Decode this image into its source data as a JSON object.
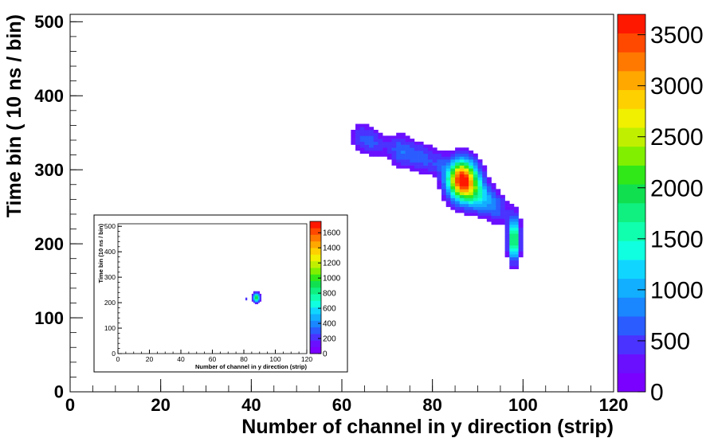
{
  "chart_data": [
    {
      "type": "heatmap",
      "panel": "main",
      "xlabel": "Number of channel in y direction (strip)",
      "ylabel": "Time bin ( 10 ns / bin)",
      "xlim": [
        0,
        120
      ],
      "ylim": [
        0,
        510
      ],
      "x_ticks": [
        "0",
        "20",
        "40",
        "60",
        "80",
        "100",
        "120"
      ],
      "y_ticks": [
        "0",
        "100",
        "200",
        "300",
        "400",
        "500"
      ],
      "z_ticks": [
        "0",
        "500",
        "1000",
        "1500",
        "2000",
        "2500",
        "3000",
        "3500"
      ],
      "zlim": [
        0,
        3700
      ],
      "grid": false,
      "colorbar": "right",
      "blobs": [
        {
          "x": 64,
          "y": 342,
          "sx": 1.8,
          "sy": 14,
          "z": 500
        },
        {
          "x": 67,
          "y": 333,
          "sx": 1.8,
          "sy": 12,
          "z": 450
        },
        {
          "x": 72,
          "y": 326,
          "sx": 1.8,
          "sy": 15,
          "z": 550
        },
        {
          "x": 75,
          "y": 318,
          "sx": 2.0,
          "sy": 13,
          "z": 500
        },
        {
          "x": 78,
          "y": 312,
          "sx": 1.6,
          "sy": 14,
          "z": 450
        },
        {
          "x": 81,
          "y": 306,
          "sx": 1.4,
          "sy": 12,
          "z": 400
        },
        {
          "x": 86,
          "y": 285,
          "sx": 2.2,
          "sy": 18,
          "z": 3700
        },
        {
          "x": 88.5,
          "y": 268,
          "sx": 2.0,
          "sy": 16,
          "z": 900
        },
        {
          "x": 91,
          "y": 258,
          "sx": 1.8,
          "sy": 14,
          "z": 700
        },
        {
          "x": 94,
          "y": 245,
          "sx": 1.6,
          "sy": 14,
          "z": 600
        },
        {
          "x": 97.5,
          "y": 205,
          "sx": 0.9,
          "sy": 20,
          "z": 2100
        }
      ]
    },
    {
      "type": "heatmap",
      "panel": "inset",
      "xlabel": "Number of channel in y direction (strip)",
      "ylabel": "Time bin (10 ns / bin)",
      "xlim": [
        0,
        120
      ],
      "ylim": [
        0,
        510
      ],
      "x_ticks": [
        "0",
        "20",
        "40",
        "60",
        "80",
        "100",
        "120"
      ],
      "y_ticks": [
        "0",
        "100",
        "200",
        "300",
        "400",
        "500"
      ],
      "z_ticks": [
        "0",
        "200",
        "400",
        "600",
        "800",
        "1000",
        "1200",
        "1400",
        "1600"
      ],
      "zlim": [
        0,
        1750
      ],
      "grid": false,
      "colorbar": "right",
      "blobs": [
        {
          "x": 87.5,
          "y": 218,
          "sx": 1.5,
          "sy": 12,
          "z": 1000
        },
        {
          "x": 81,
          "y": 212,
          "sx": 0.5,
          "sy": 5,
          "z": 250
        }
      ]
    }
  ]
}
